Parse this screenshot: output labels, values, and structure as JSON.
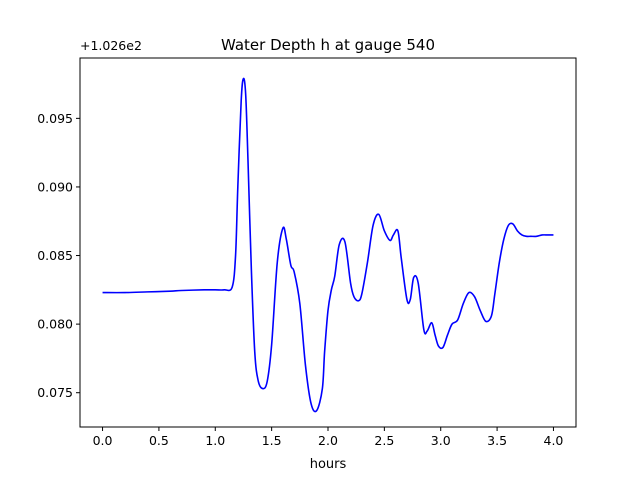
{
  "chart_data": {
    "type": "line",
    "title": "Water Depth h at gauge 540",
    "xlabel": "hours",
    "ylabel": "",
    "y_offset_label": "+1.026e2",
    "xlim": [
      -0.2,
      4.2
    ],
    "ylim": [
      0.0725,
      0.0994
    ],
    "x_ticks": [
      0.0,
      0.5,
      1.0,
      1.5,
      2.0,
      2.5,
      3.0,
      3.5,
      4.0
    ],
    "x_tick_labels": [
      "0.0",
      "0.5",
      "1.0",
      "1.5",
      "2.0",
      "2.5",
      "3.0",
      "3.5",
      "4.0"
    ],
    "y_ticks": [
      0.075,
      0.08,
      0.085,
      0.09,
      0.095
    ],
    "y_tick_labels": [
      "0.075",
      "0.080",
      "0.085",
      "0.090",
      "0.095"
    ],
    "grid": false,
    "series": [
      {
        "color": "#0000ff",
        "x": [
          0.0,
          0.2,
          0.4,
          0.6,
          0.7,
          0.9,
          1.0,
          1.08,
          1.15,
          1.18,
          1.2,
          1.23,
          1.25,
          1.27,
          1.29,
          1.32,
          1.35,
          1.38,
          1.42,
          1.46,
          1.5,
          1.55,
          1.6,
          1.63,
          1.67,
          1.7,
          1.75,
          1.8,
          1.85,
          1.9,
          1.95,
          1.97,
          2.0,
          2.03,
          2.06,
          2.1,
          2.15,
          2.2,
          2.23,
          2.27,
          2.3,
          2.35,
          2.4,
          2.45,
          2.5,
          2.55,
          2.58,
          2.62,
          2.65,
          2.7,
          2.73,
          2.76,
          2.8,
          2.85,
          2.88,
          2.92,
          2.95,
          2.98,
          3.02,
          3.06,
          3.1,
          3.15,
          3.2,
          3.25,
          3.3,
          3.35,
          3.4,
          3.45,
          3.48,
          3.52,
          3.56,
          3.6,
          3.64,
          3.68,
          3.72,
          3.76,
          3.8,
          3.85,
          3.9,
          3.95,
          4.0
        ],
        "y": [
          0.0823,
          0.0823,
          0.08235,
          0.0824,
          0.08245,
          0.0825,
          0.0825,
          0.0825,
          0.0827,
          0.085,
          0.09,
          0.0963,
          0.0979,
          0.0967,
          0.092,
          0.084,
          0.078,
          0.0759,
          0.0753,
          0.0758,
          0.0785,
          0.0845,
          0.087,
          0.0862,
          0.0843,
          0.0838,
          0.0815,
          0.077,
          0.0742,
          0.0737,
          0.0753,
          0.078,
          0.081,
          0.0825,
          0.0835,
          0.0858,
          0.086,
          0.083,
          0.082,
          0.0817,
          0.0822,
          0.0845,
          0.0872,
          0.088,
          0.0868,
          0.0861,
          0.0865,
          0.0868,
          0.0848,
          0.0818,
          0.0818,
          0.0834,
          0.083,
          0.0796,
          0.0795,
          0.0801,
          0.0792,
          0.0784,
          0.0783,
          0.0792,
          0.08,
          0.0803,
          0.0815,
          0.0823,
          0.082,
          0.081,
          0.0802,
          0.0806,
          0.0822,
          0.0845,
          0.0862,
          0.0872,
          0.0873,
          0.0868,
          0.0865,
          0.0864,
          0.0864,
          0.0864,
          0.0865,
          0.0865,
          0.0865
        ]
      }
    ]
  }
}
